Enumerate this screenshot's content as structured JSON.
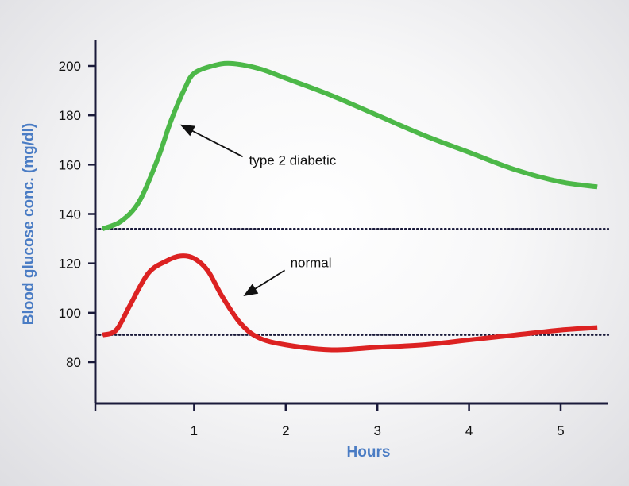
{
  "chart_data": {
    "type": "line",
    "xlabel": "Hours",
    "ylabel": "Blood glucose conc. (mg/dl)",
    "xlim": [
      0,
      5.4
    ],
    "ylim": [
      75,
      210
    ],
    "x_ticks": [
      1,
      2,
      3,
      4,
      5
    ],
    "y_ticks": [
      80,
      100,
      120,
      140,
      160,
      180,
      200
    ],
    "grid": false,
    "series": [
      {
        "name": "type 2 diabetic",
        "color": "#4cb848",
        "x": [
          0,
          0.2,
          0.4,
          0.6,
          0.75,
          0.9,
          1.0,
          1.2,
          1.4,
          1.7,
          2.0,
          2.5,
          3.0,
          3.5,
          4.0,
          4.5,
          5.0,
          5.4
        ],
        "y": [
          134,
          137,
          145,
          162,
          178,
          191,
          197,
          200,
          201,
          199,
          195,
          188,
          180,
          172,
          165,
          158,
          153,
          151
        ]
      },
      {
        "name": "normal",
        "color": "#dc2222",
        "x": [
          0,
          0.15,
          0.3,
          0.5,
          0.7,
          0.85,
          1.0,
          1.15,
          1.3,
          1.5,
          1.7,
          2.0,
          2.5,
          3.0,
          3.5,
          4.0,
          4.5,
          5.0,
          5.4
        ],
        "y": [
          91,
          93,
          103,
          116,
          121,
          123,
          122,
          117,
          107,
          96,
          90,
          87,
          85,
          86,
          87,
          89,
          91,
          93,
          94
        ]
      }
    ],
    "reference_lines": [
      {
        "y": 134,
        "style": "dotted"
      },
      {
        "y": 91,
        "style": "dotted"
      }
    ],
    "annotations": [
      {
        "text": "type 2 diabetic",
        "series": "type 2 diabetic",
        "target": [
          0.86,
          176
        ],
        "text_at": [
          1.6,
          160
        ]
      },
      {
        "text": "normal",
        "series": "normal",
        "target": [
          1.55,
          107
        ],
        "text_at": [
          2.05,
          118.5
        ]
      }
    ]
  }
}
